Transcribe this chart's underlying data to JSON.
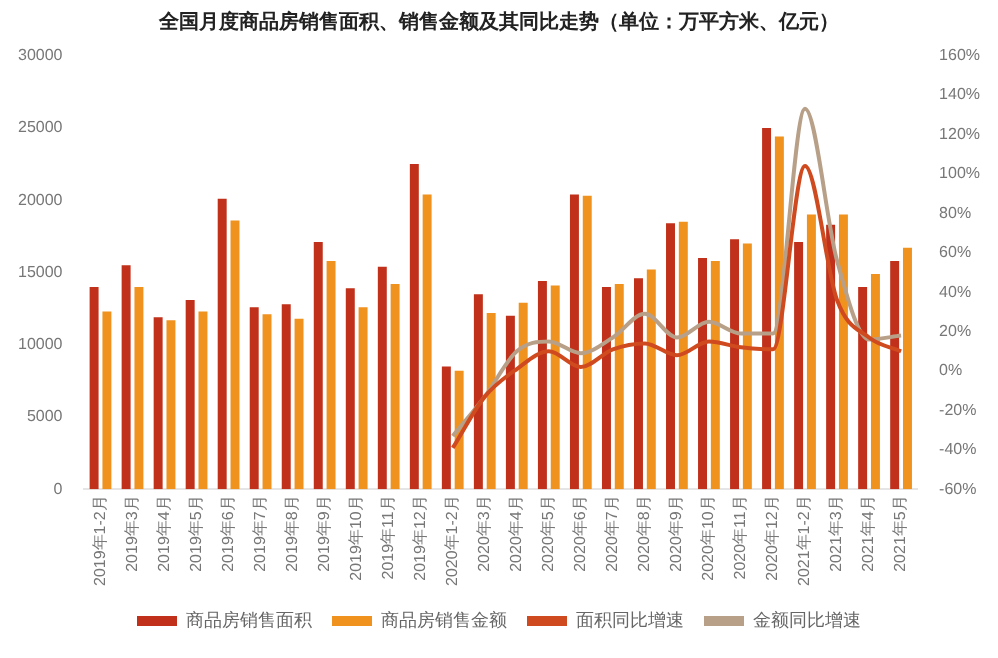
{
  "chart_data": {
    "type": "bar",
    "title": "全国月度商品房销售面积、销售金额及其同比走势（单位：万平方米、亿元）",
    "categories": [
      "2019年1-2月",
      "2019年3月",
      "2019年4月",
      "2019年5月",
      "2019年6月",
      "2019年7月",
      "2019年8月",
      "2019年9月",
      "2019年10月",
      "2019年11月",
      "2019年12月",
      "2020年1-2月",
      "2020年3月",
      "2020年4月",
      "2020年5月",
      "2020年6月",
      "2020年7月",
      "2020年8月",
      "2020年9月",
      "2020年10月",
      "2020年11月",
      "2020年12月",
      "2021年1-2月",
      "2021年3月",
      "2021年4月",
      "2021年5月"
    ],
    "series": [
      {
        "name": "商品房销售面积",
        "color": "#c0301a",
        "values": [
          14000,
          15500,
          11900,
          13100,
          20100,
          12600,
          12800,
          17100,
          13900,
          15400,
          22500,
          8500,
          13500,
          12000,
          14400,
          20400,
          14000,
          14600,
          18400,
          16000,
          17300,
          25000,
          17100,
          18300,
          14000,
          15800
        ]
      },
      {
        "name": "商品房销售金额",
        "color": "#f0921e",
        "values": [
          12300,
          14000,
          11700,
          12300,
          18600,
          12100,
          11800,
          15800,
          12600,
          14200,
          20400,
          8200,
          12200,
          12900,
          14100,
          20300,
          14200,
          15200,
          18500,
          15800,
          17000,
          24400,
          19000,
          19000,
          14900,
          16700
        ]
      },
      {
        "name": "面积同比增速",
        "type": "line",
        "axis": "y2",
        "color": "#d04a1f",
        "values": [
          null,
          null,
          null,
          null,
          null,
          null,
          null,
          null,
          null,
          null,
          null,
          -39,
          -13,
          1,
          10,
          2,
          11,
          14,
          8,
          15,
          12,
          11,
          104,
          36,
          17,
          10
        ]
      },
      {
        "name": "金额同比增速",
        "type": "line",
        "axis": "y2",
        "color": "#b8a088",
        "values": [
          null,
          null,
          null,
          null,
          null,
          null,
          null,
          null,
          null,
          null,
          null,
          -33,
          -13,
          10,
          15,
          9,
          17,
          29,
          17,
          25,
          19,
          19,
          133,
          56,
          16,
          18
        ]
      }
    ],
    "ylim": [
      0,
      30000
    ],
    "yticks": [
      0,
      5000,
      10000,
      15000,
      20000,
      25000,
      30000
    ],
    "y2lim": [
      -60,
      160
    ],
    "y2ticks": [
      {
        "value": -60,
        "label": "-60%"
      },
      {
        "value": -40,
        "label": "-40%"
      },
      {
        "value": -20,
        "label": "-20%"
      },
      {
        "value": 0,
        "label": "0%"
      },
      {
        "value": 20,
        "label": "20%"
      },
      {
        "value": 40,
        "label": "40%"
      },
      {
        "value": 60,
        "label": "60%"
      },
      {
        "value": 80,
        "label": "80%"
      },
      {
        "value": 100,
        "label": "100%"
      },
      {
        "value": 120,
        "label": "120%"
      },
      {
        "value": 140,
        "label": "140%"
      },
      {
        "value": 160,
        "label": "160%"
      }
    ],
    "grid": false,
    "legend": "bottom",
    "marker": "none"
  }
}
